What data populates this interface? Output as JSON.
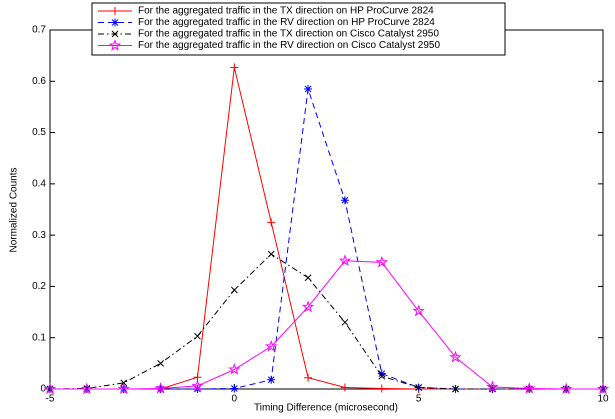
{
  "chart_data": {
    "type": "line",
    "xlabel": "Timing Difference (microsecond)",
    "ylabel": "Normalized Counts",
    "x": [
      -5,
      -4,
      -3,
      -2,
      -1,
      0,
      1,
      2,
      3,
      4,
      5,
      6,
      7,
      8,
      9,
      10
    ],
    "series": [
      {
        "name": "For the aggregated traffic in the TX direction on HP ProCurve 2824",
        "color": "#ff0000",
        "dash": "solid",
        "marker": "plus",
        "values": [
          0,
          0,
          0,
          0,
          0.023,
          0.627,
          0.325,
          0.022,
          0.003,
          0.001,
          0,
          0,
          0,
          0,
          0,
          0
        ]
      },
      {
        "name": "For the aggregated traffic in the RV direction on HP ProCurve 2824",
        "color": "#0000ff",
        "dash": "dashed",
        "marker": "asterisk",
        "values": [
          0,
          0,
          0,
          0,
          0,
          0.001,
          0.018,
          0.585,
          0.368,
          0.03,
          0.003,
          0,
          0,
          0,
          0,
          0
        ]
      },
      {
        "name": "For the aggregated traffic in the TX direction on Cisco Catalyst 2950",
        "color": "#000000",
        "dash": "dashdot",
        "marker": "cross",
        "values": [
          0,
          0.001,
          0.012,
          0.05,
          0.103,
          0.193,
          0.263,
          0.217,
          0.13,
          0.025,
          0.003,
          0,
          0,
          0,
          0,
          0
        ]
      },
      {
        "name": "For the aggregated traffic in the RV direction on Cisco Catalyst 2950",
        "color": "#ff00ff",
        "dash": "solid",
        "marker": "star",
        "values": [
          0,
          0,
          0,
          0.001,
          0.006,
          0.038,
          0.083,
          0.16,
          0.25,
          0.247,
          0.152,
          0.062,
          0.004,
          0.001,
          0,
          0
        ]
      }
    ],
    "xlim": [
      -5,
      10
    ],
    "xticks": [
      -5,
      0,
      5,
      10
    ],
    "ylim": [
      0,
      0.7
    ],
    "yticks": [
      0,
      0.1,
      0.2,
      0.3,
      0.4,
      0.5,
      0.6,
      0.7
    ],
    "grid": false,
    "legend": "top"
  }
}
